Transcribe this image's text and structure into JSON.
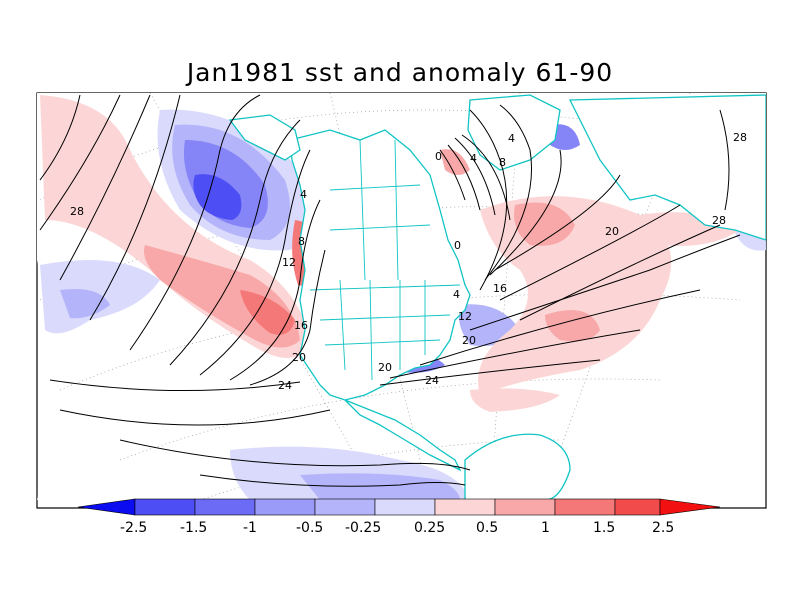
{
  "title": "Jan1981 sst and anomaly 61-90",
  "colors": {
    "coast": "#11c4c4",
    "contour": "#000000",
    "neg_25": "#0c0cf0",
    "neg_15": "#4e4ef5",
    "neg_10": "#8585f7",
    "neg_05": "#b4b4fa",
    "neg_025": "#dadafd",
    "pos_025": "#fcd6d6",
    "pos_05": "#f8a8a8",
    "pos_10": "#f57878",
    "pos_15": "#f24b4b",
    "pos_25": "#f21010"
  },
  "colorbar": {
    "labels": [
      "-2.5",
      "-1.5",
      "-1",
      "-0.5",
      "-0.25",
      "0.25",
      "0.5",
      "1",
      "1.5",
      "2.5"
    ]
  },
  "contour_labels": [
    {
      "text": "28"
    },
    {
      "text": "4"
    },
    {
      "text": "8"
    },
    {
      "text": "12"
    },
    {
      "text": "16"
    },
    {
      "text": "20"
    },
    {
      "text": "24"
    },
    {
      "text": "0"
    },
    {
      "text": "0"
    },
    {
      "text": "4"
    },
    {
      "text": "8"
    },
    {
      "text": "4"
    },
    {
      "text": "4"
    },
    {
      "text": "12"
    },
    {
      "text": "16"
    },
    {
      "text": "20"
    },
    {
      "text": "20"
    },
    {
      "text": "24"
    },
    {
      "text": "20"
    },
    {
      "text": "28"
    },
    {
      "text": "28"
    }
  ]
}
